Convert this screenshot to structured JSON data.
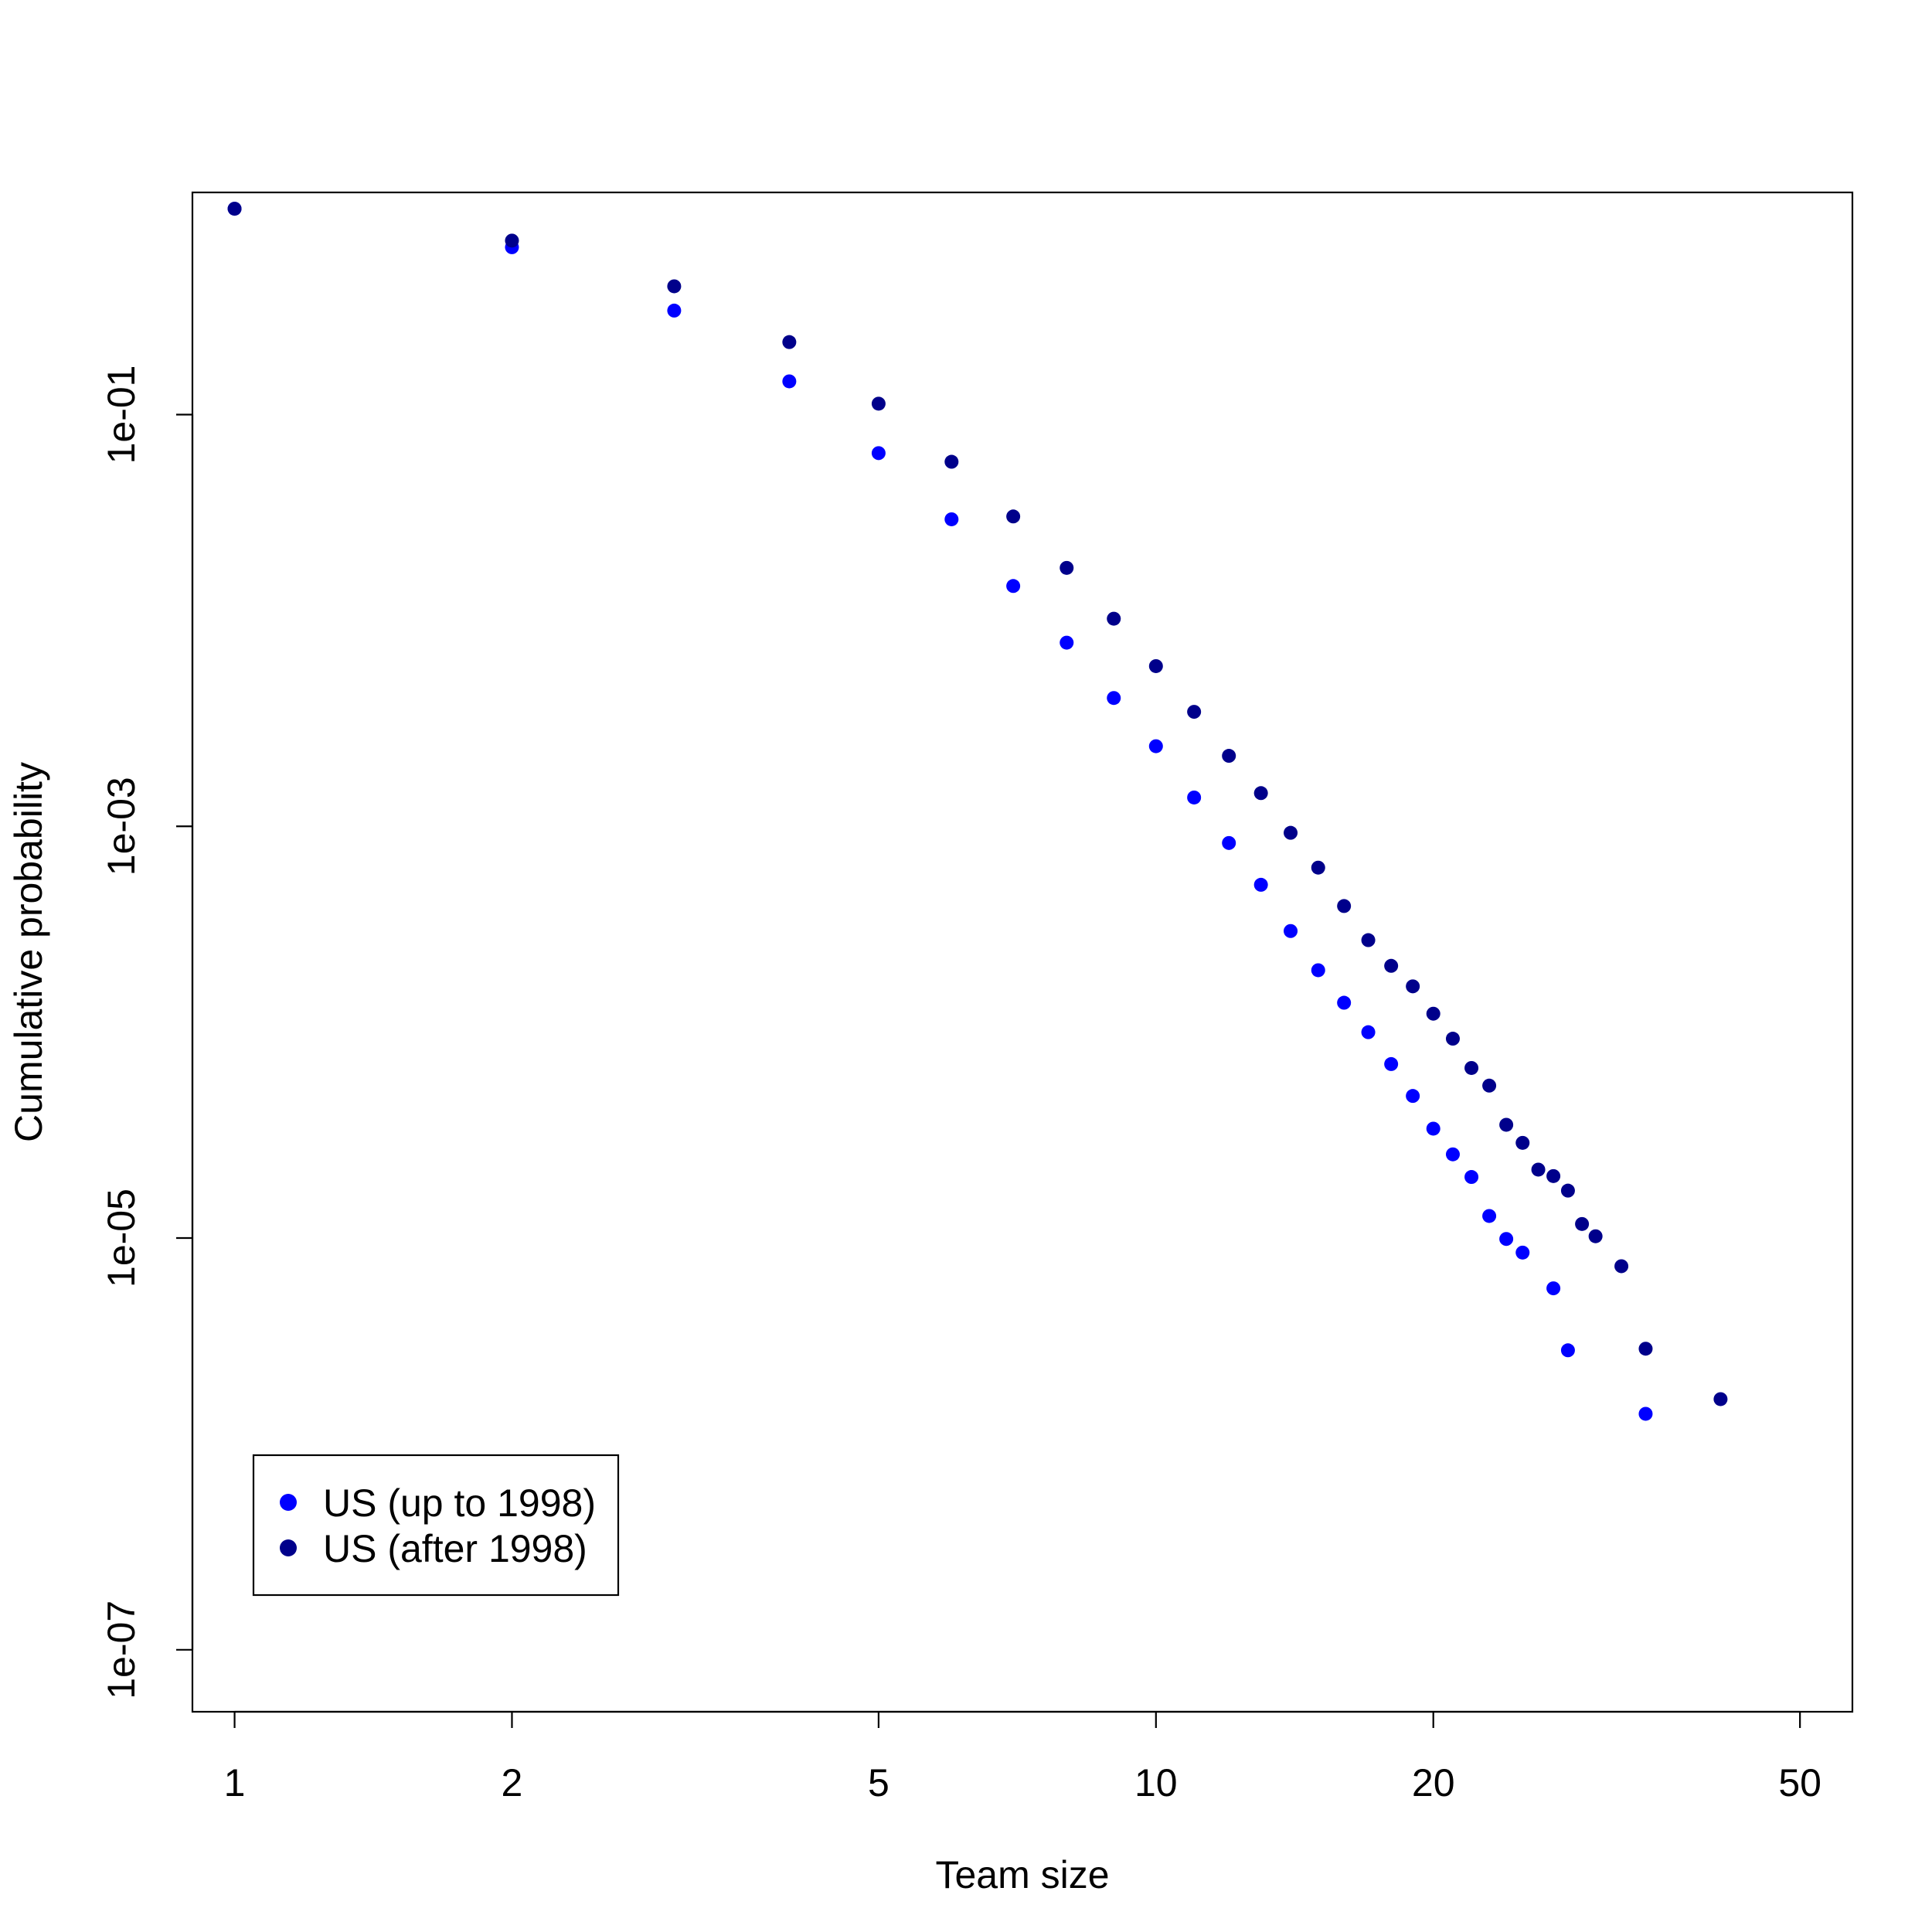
{
  "chart_data": {
    "type": "scatter",
    "title": "",
    "xlabel": "Team size",
    "ylabel": "Cumulative probability",
    "x_scale": "log",
    "y_scale": "log",
    "xlim": [
      0.9,
      57
    ],
    "ylim": [
      5e-08,
      1.2
    ],
    "x_ticks": [
      {
        "value": 1,
        "label": "1"
      },
      {
        "value": 2,
        "label": "2"
      },
      {
        "value": 5,
        "label": "5"
      },
      {
        "value": 10,
        "label": "10"
      },
      {
        "value": 20,
        "label": "20"
      },
      {
        "value": 50,
        "label": "50"
      }
    ],
    "y_ticks": [
      {
        "value": 0.1,
        "label": "1e-01"
      },
      {
        "value": 0.001,
        "label": "1e-03"
      },
      {
        "value": 1e-05,
        "label": "1e-05"
      },
      {
        "value": 1e-07,
        "label": "1e-07"
      }
    ],
    "legend": {
      "position": "bottom-left",
      "entries": [
        {
          "name": "US (up to 1998)",
          "color": "#0000FF"
        },
        {
          "name": "US (after 1998)",
          "color": "#00008B"
        }
      ]
    },
    "series": [
      {
        "name": "US (up to 1998)",
        "color": "#0000FF",
        "points": [
          [
            1,
            1.0
          ],
          [
            2,
            0.65
          ],
          [
            3,
            0.32
          ],
          [
            4,
            0.145
          ],
          [
            5,
            0.065
          ],
          [
            6,
            0.031
          ],
          [
            7,
            0.0147
          ],
          [
            8,
            0.0078
          ],
          [
            9,
            0.0042
          ],
          [
            10,
            0.00245
          ],
          [
            11,
            0.00138
          ],
          [
            12,
            0.00083
          ],
          [
            13,
            0.00052
          ],
          [
            14,
            0.00031
          ],
          [
            15,
            0.0002
          ],
          [
            16,
            0.000139
          ],
          [
            17,
            0.0001
          ],
          [
            18,
            7e-05
          ],
          [
            19,
            4.9e-05
          ],
          [
            20,
            3.4e-05
          ],
          [
            21,
            2.55e-05
          ],
          [
            22,
            1.98e-05
          ],
          [
            23,
            1.28e-05
          ],
          [
            24,
            9.9e-06
          ],
          [
            25,
            8.5e-06
          ],
          [
            27,
            5.7e-06
          ],
          [
            28,
            2.85e-06
          ],
          [
            34,
            1.4e-06
          ]
        ]
      },
      {
        "name": "US (after 1998)",
        "color": "#00008B",
        "points": [
          [
            1,
            1.0
          ],
          [
            2,
            0.7
          ],
          [
            3,
            0.42
          ],
          [
            4,
            0.225
          ],
          [
            5,
            0.113
          ],
          [
            6,
            0.059
          ],
          [
            7,
            0.032
          ],
          [
            8,
            0.018
          ],
          [
            9,
            0.0102
          ],
          [
            10,
            0.006
          ],
          [
            11,
            0.0036
          ],
          [
            12,
            0.0022
          ],
          [
            13,
            0.00145
          ],
          [
            14,
            0.00093
          ],
          [
            15,
            0.00063
          ],
          [
            16,
            0.00041
          ],
          [
            17,
            0.00028
          ],
          [
            18,
            0.00021
          ],
          [
            19,
            0.000167
          ],
          [
            20,
            0.000123
          ],
          [
            21,
            9.3e-05
          ],
          [
            22,
            6.7e-05
          ],
          [
            23,
            5.5e-05
          ],
          [
            24,
            3.55e-05
          ],
          [
            25,
            2.9e-05
          ],
          [
            26,
            2.15e-05
          ],
          [
            27,
            2e-05
          ],
          [
            28,
            1.7e-05
          ],
          [
            29,
            1.17e-05
          ],
          [
            30,
            1.02e-05
          ],
          [
            32,
            7.3e-06
          ],
          [
            34,
            2.9e-06
          ],
          [
            41,
            1.65e-06
          ]
        ]
      }
    ]
  }
}
